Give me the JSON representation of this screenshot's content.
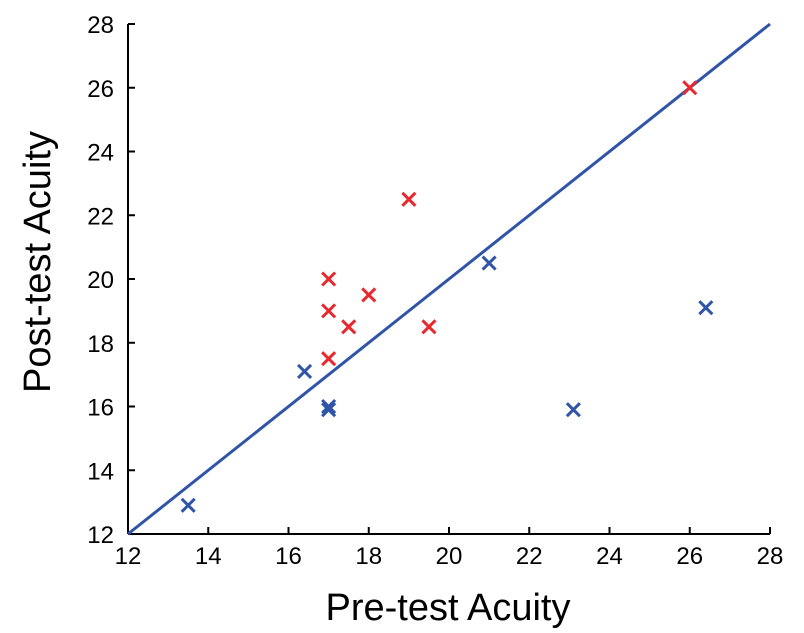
{
  "chart_data": {
    "type": "scatter",
    "xlabel": "Pre-test Acuity",
    "ylabel": "Post-test  Acuity",
    "xlim": [
      12,
      28
    ],
    "ylim": [
      12,
      28
    ],
    "xticks": [
      12,
      14,
      16,
      18,
      20,
      22,
      24,
      26,
      28
    ],
    "yticks": [
      12,
      14,
      16,
      18,
      20,
      22,
      24,
      26,
      28
    ],
    "reference_line": {
      "from": [
        12,
        12
      ],
      "to": [
        28,
        28
      ],
      "color": "#2f54a8"
    },
    "series": [
      {
        "color": "#e8282e",
        "marker": "x",
        "points": [
          {
            "x": 17.0,
            "y": 20.0
          },
          {
            "x": 17.0,
            "y": 19.0
          },
          {
            "x": 17.0,
            "y": 17.5
          },
          {
            "x": 17.5,
            "y": 18.5
          },
          {
            "x": 18.0,
            "y": 19.5
          },
          {
            "x": 19.0,
            "y": 22.5
          },
          {
            "x": 19.5,
            "y": 18.5
          },
          {
            "x": 26.0,
            "y": 26.0
          }
        ]
      },
      {
        "color": "#2f54a8",
        "marker": "x",
        "points": [
          {
            "x": 13.5,
            "y": 12.9
          },
          {
            "x": 16.4,
            "y": 17.1
          },
          {
            "x": 17.0,
            "y": 16.0
          },
          {
            "x": 17.0,
            "y": 15.9
          },
          {
            "x": 21.0,
            "y": 20.5
          },
          {
            "x": 23.1,
            "y": 15.9
          },
          {
            "x": 26.4,
            "y": 19.1
          }
        ]
      }
    ]
  }
}
